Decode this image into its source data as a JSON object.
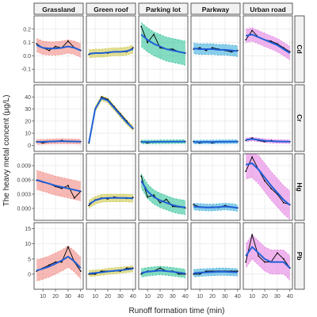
{
  "chart_data": {
    "type": "line",
    "title": "",
    "xlabel": "Runoff formation time (min)",
    "ylabel": "The heavy metal concent (µg/L)",
    "x": [
      5,
      10,
      15,
      20,
      25,
      30,
      35,
      40
    ],
    "xlim": [
      3,
      42
    ],
    "x_ticks": [
      10,
      20,
      30,
      40
    ],
    "columns": [
      "Grassland",
      "Green roof",
      "Parking lot",
      "Parkway",
      "Urban road"
    ],
    "rows": [
      {
        "name": "Cd",
        "ylim": [
          -0.2,
          0.3
        ],
        "ticks": [
          "-0.1",
          "0.0",
          "0.1",
          "0.2"
        ],
        "tick_values": [
          -0.1,
          0.0,
          0.1,
          0.2
        ],
        "panels": [
          {
            "observed": [
              0.09,
              0.06,
              0.04,
              0.07,
              0.06,
              0.11,
              0.06,
              0.04
            ],
            "fitted": [
              0.08,
              0.06,
              0.055,
              0.055,
              0.06,
              0.07,
              0.06,
              0.04
            ],
            "band": 0.05
          },
          {
            "observed": [
              0.01,
              0.02,
              0.02,
              0.02,
              0.03,
              0.03,
              0.03,
              0.06
            ],
            "fitted": [
              0.015,
              0.02,
              0.02,
              0.025,
              0.03,
              0.03,
              0.035,
              0.05
            ],
            "band": 0.03
          },
          {
            "observed": [
              0.22,
              0.1,
              0.16,
              0.06,
              0.05,
              0.05,
              0.03,
              0.02
            ],
            "fitted": [
              0.16,
              0.12,
              0.09,
              0.07,
              0.05,
              0.04,
              0.03,
              0.02
            ],
            "band": 0.09
          },
          {
            "observed": [
              0.05,
              0.06,
              0.04,
              0.06,
              0.05,
              0.04,
              0.03,
              0.04
            ],
            "fitted": [
              0.055,
              0.05,
              0.05,
              0.05,
              0.045,
              0.045,
              0.04,
              0.035
            ],
            "band": 0.04
          },
          {
            "observed": [
              0.12,
              0.19,
              0.14,
              0.12,
              0.11,
              0.09,
              0.06,
              0.03
            ],
            "fitted": [
              0.15,
              0.16,
              0.14,
              0.12,
              0.1,
              0.08,
              0.05,
              0.02
            ],
            "band": 0.05
          }
        ]
      },
      {
        "name": "Cr",
        "ylim": [
          -5,
          50
        ],
        "ticks": [
          "0",
          "10",
          "20",
          "30",
          "40"
        ],
        "tick_values": [
          0,
          10,
          20,
          30,
          40
        ],
        "panels": [
          {
            "observed": [
              3,
              2,
              3,
              3,
              4,
              3,
              3,
              3
            ],
            "fitted": [
              2.8,
              2.9,
              3.1,
              3.3,
              3.4,
              3.3,
              3.2,
              3.0
            ],
            "band": 2
          },
          {
            "observed": [
              2,
              30,
              40,
              38,
              32,
              26,
              20,
              14
            ],
            "fitted": [
              2,
              30,
              39,
              37,
              31,
              25,
              19,
              14
            ],
            "band": 2
          },
          {
            "observed": [
              3,
              2,
              3,
              3,
              3,
              3,
              3,
              3
            ],
            "fitted": [
              2.8,
              2.8,
              2.8,
              2.9,
              2.9,
              3.0,
              3.0,
              3.1
            ],
            "band": 1.5
          },
          {
            "observed": [
              3,
              2,
              3,
              2,
              3,
              3,
              3,
              3
            ],
            "fitted": [
              2.7,
              2.7,
              2.8,
              2.8,
              2.9,
              2.9,
              3.0,
              3.0
            ],
            "band": 1.5
          },
          {
            "observed": [
              4,
              6,
              4,
              3,
              4,
              3,
              3,
              3
            ],
            "fitted": [
              4.5,
              5.2,
              4.5,
              3.8,
              3.4,
              3.2,
              3.1,
              3.0
            ],
            "band": 1.5
          }
        ]
      },
      {
        "name": "Hg",
        "ylim": [
          -0.0025,
          0.0115
        ],
        "ticks": [
          "0.000",
          "0.003",
          "0.006",
          "0.009"
        ],
        "tick_values": [
          0,
          0.003,
          0.006,
          0.009
        ],
        "panels": [
          {
            "observed": [
              0.0059,
              0.0055,
              0.0052,
              0.0046,
              0.0042,
              0.0048,
              0.0022,
              0.0036
            ],
            "fitted": [
              0.006,
              0.0056,
              0.0052,
              0.0048,
              0.0045,
              0.0042,
              0.0039,
              0.0036
            ],
            "band": 0.002
          },
          {
            "observed": [
              0.0006,
              0.0018,
              0.0022,
              0.002,
              0.0024,
              0.0022,
              0.0021,
              0.0023
            ],
            "fitted": [
              0.0009,
              0.0017,
              0.0021,
              0.0022,
              0.0022,
              0.0022,
              0.0022,
              0.0021
            ],
            "band": 0.0008
          },
          {
            "observed": [
              0.0068,
              0.0024,
              0.0028,
              0.0012,
              0.0019,
              0.0004,
              0.0003,
              0.0001
            ],
            "fitted": [
              0.0058,
              0.0036,
              0.0024,
              0.0017,
              0.0012,
              0.0007,
              0.0004,
              0.0002
            ],
            "band": 0.0015
          },
          {
            "observed": [
              0.0008,
              0.0003,
              0.0002,
              0.0003,
              0.0002,
              0.0006,
              0.0003,
              0.0001
            ],
            "fitted": [
              0.0004,
              0.0003,
              0.0002,
              0.0002,
              0.0003,
              0.0004,
              0.0003,
              0.0001
            ],
            "band": 0.0007
          },
          {
            "observed": [
              0.0078,
              0.0108,
              0.0082,
              0.0058,
              0.0042,
              0.003,
              0.0012,
              0.0008
            ],
            "fitted": [
              0.0092,
              0.0095,
              0.0082,
              0.0065,
              0.0048,
              0.0033,
              0.0018,
              0.0007
            ],
            "band": 0.003
          }
        ]
      },
      {
        "name": "Pb",
        "ylim": [
          -5,
          17
        ],
        "ticks": [
          "0",
          "5",
          "10",
          "15"
        ],
        "tick_values": [
          0,
          5,
          10,
          15
        ],
        "panels": [
          {
            "observed": [
              1,
              2,
              3,
              4,
              4,
              9,
              4,
              1
            ],
            "fitted": [
              1.2,
              1.8,
              2.5,
              3.5,
              4.5,
              5.8,
              4.2,
              2.0
            ],
            "band": 3.5
          },
          {
            "observed": [
              0,
              0,
              1,
              1,
              1,
              1,
              2,
              2
            ],
            "fitted": [
              0.2,
              0.4,
              0.6,
              0.9,
              1.1,
              1.3,
              1.5,
              1.8
            ],
            "band": 1.0
          },
          {
            "observed": [
              0,
              1,
              1,
              2,
              1,
              1,
              0,
              0
            ],
            "fitted": [
              0.4,
              0.8,
              1.0,
              1.2,
              1.0,
              0.8,
              0.5,
              0.2
            ],
            "band": 1.4
          },
          {
            "observed": [
              0,
              0,
              1,
              1,
              1,
              1,
              1,
              1
            ],
            "fitted": [
              0.3,
              0.5,
              0.6,
              0.7,
              0.8,
              0.8,
              0.7,
              0.6
            ],
            "band": 1.2
          },
          {
            "observed": [
              4,
              13,
              6,
              4,
              4,
              7,
              5,
              2
            ],
            "fitted": [
              6,
              9,
              7,
              5,
              4,
              4,
              4,
              2
            ],
            "band": 4
          }
        ]
      }
    ],
    "colors": {
      "Grassland": "#f08078",
      "Green roof": "#c9c238",
      "Parking lot": "#1fbf8f",
      "Parkway": "#2aa6d8",
      "Urban road": "#e277e0",
      "fitted_line": "#1f5fd6",
      "observed_line": "#000000"
    },
    "grid": true,
    "legend": "none"
  }
}
